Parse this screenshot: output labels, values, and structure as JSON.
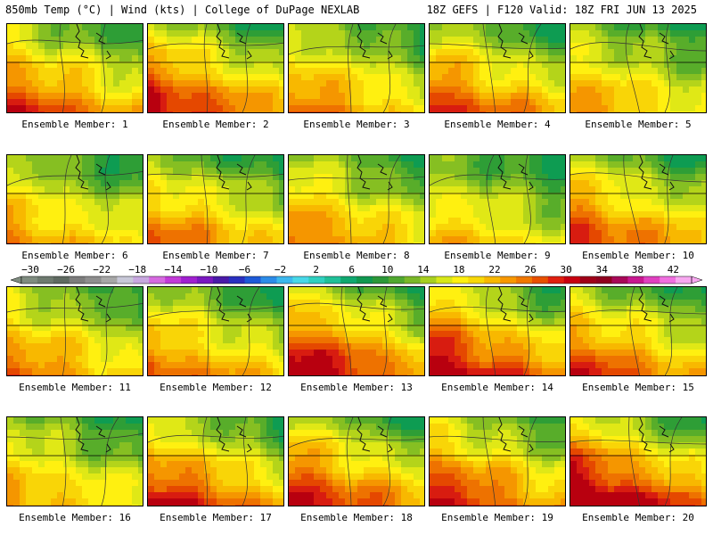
{
  "header": {
    "left_title": "850mb Temp (°C) | Wind (kts) | College of DuPage NEXLAB",
    "right_title": "18Z GEFS | F120 Valid: 18Z FRI JUN 13 2025"
  },
  "members": [
    {
      "label": "Ensemble Member: 1",
      "warm": 1.0
    },
    {
      "label": "Ensemble Member: 2",
      "warm": 1.1
    },
    {
      "label": "Ensemble Member: 3",
      "warm": 0.9
    },
    {
      "label": "Ensemble Member: 4",
      "warm": 1.0
    },
    {
      "label": "Ensemble Member: 5",
      "warm": 0.8
    },
    {
      "label": "Ensemble Member: 6",
      "warm": 0.8
    },
    {
      "label": "Ensemble Member: 7",
      "warm": 0.9
    },
    {
      "label": "Ensemble Member: 8",
      "warm": 0.9
    },
    {
      "label": "Ensemble Member: 9",
      "warm": 0.7
    },
    {
      "label": "Ensemble Member: 10",
      "warm": 1.0
    },
    {
      "label": "Ensemble Member: 11",
      "warm": 0.9
    },
    {
      "label": "Ensemble Member: 12",
      "warm": 0.9
    },
    {
      "label": "Ensemble Member: 13",
      "warm": 1.2
    },
    {
      "label": "Ensemble Member: 14",
      "warm": 1.2
    },
    {
      "label": "Ensemble Member: 15",
      "warm": 1.0
    },
    {
      "label": "Ensemble Member: 16",
      "warm": 0.8
    },
    {
      "label": "Ensemble Member: 17",
      "warm": 1.1
    },
    {
      "label": "Ensemble Member: 18",
      "warm": 1.1
    },
    {
      "label": "Ensemble Member: 19",
      "warm": 1.1
    },
    {
      "label": "Ensemble Member: 20",
      "warm": 1.3
    }
  ],
  "colorbar": {
    "ticks": [
      "−30",
      "−26",
      "−22",
      "−18",
      "−14",
      "−10",
      "−6",
      "−2",
      "2",
      "6",
      "10",
      "14",
      "18",
      "22",
      "26",
      "30",
      "34",
      "38",
      "42"
    ],
    "colors": [
      "#7f8c80",
      "#6e7a6f",
      "#5f6a61",
      "#7d7d7d",
      "#8e8e8e",
      "#a7a7a7",
      "#c8c8d8",
      "#c8a8e0",
      "#d66ae0",
      "#c23ad8",
      "#a020d0",
      "#7a18c0",
      "#4a1aa8",
      "#2a30c0",
      "#1e5ad8",
      "#2c8ce8",
      "#3cb8ee",
      "#48d8e8",
      "#30d0c0",
      "#20c098",
      "#10a870",
      "#109850",
      "#2c9838",
      "#50a830",
      "#7ab828",
      "#a8d020",
      "#d8e818",
      "#fff010",
      "#f8d808",
      "#f8b800",
      "#f89800",
      "#f07800",
      "#e85000",
      "#e02010",
      "#c80010",
      "#a00018",
      "#900020",
      "#a80858",
      "#c81890",
      "#e040c0",
      "#f070e0",
      "#f8a8f0"
    ]
  },
  "map_palette": [
    "#0e9c52",
    "#2e9e36",
    "#58ad2a",
    "#86bf22",
    "#b4d41a",
    "#e0e816",
    "#fff010",
    "#f9d507",
    "#f8b800",
    "#f59600",
    "#ee7200",
    "#e54800",
    "#d81c10",
    "#b8000f"
  ]
}
